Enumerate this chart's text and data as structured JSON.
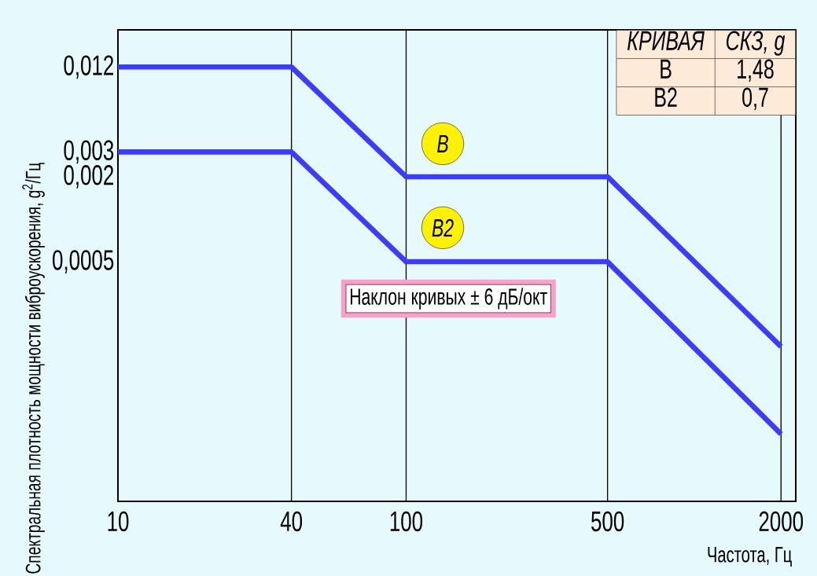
{
  "chart_data": {
    "type": "line",
    "xlabel": "Частота, Гц",
    "ylabel": "Спектральная плотность мощности виброускорения, g$^{2}$/Гц",
    "x": [
      10,
      40,
      100,
      500,
      2000
    ],
    "series": [
      {
        "name": "B",
        "color": "#3c3cff",
        "values": [
          0.012,
          0.012,
          0.002,
          0.002,
          0.000125
        ]
      },
      {
        "name": "B2",
        "color": "#3c3cff",
        "values": [
          0.003,
          0.003,
          0.0005,
          0.0005,
          3e-05
        ]
      }
    ],
    "log": "xy",
    "xlim": [
      10,
      2250
    ],
    "ylim": [
      1e-05,
      0.022
    ],
    "xticks": [
      10,
      40,
      100,
      500,
      2000
    ],
    "yticks": [
      {
        "value": 0.0005,
        "label": "0,0005"
      },
      {
        "value": 0.002,
        "label": "0,002"
      },
      {
        "value": 0.003,
        "label": "0,003"
      },
      {
        "value": 0.012,
        "label": "0,012"
      }
    ],
    "grid": "x",
    "marker": "none",
    "line_style": "solid",
    "annotations": [
      "Наклон кривых ± 6 дБ/окт",
      "КРИВАЯ",
      "СКЗ, g",
      "B",
      "1,48",
      "B2",
      "0,7"
    ]
  }
}
